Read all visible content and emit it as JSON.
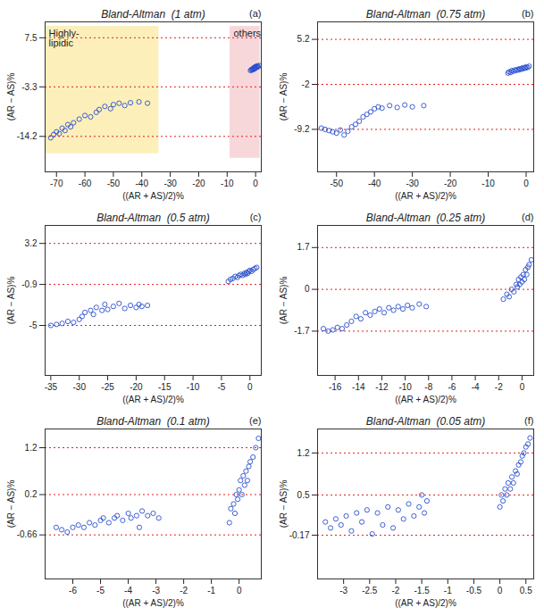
{
  "chart_data": [
    {
      "type": "scatter",
      "title": "Bland-Altman  (1 atm)",
      "panel_label": "(a)",
      "x_label": "((AR + AS)/2)%",
      "y_label": "(AR − AS)%",
      "xlim": [
        -74,
        2
      ],
      "xticks": [
        -70,
        -60,
        -50,
        -40,
        -30,
        -20,
        -10,
        0
      ],
      "ylim": [
        -22,
        11
      ],
      "yticks": [
        7.5,
        -3.3,
        -14.2
      ],
      "grid": true,
      "color": "#2a4fd0",
      "marker": "circle",
      "regions": [
        {
          "label": "Highly-\nlipidic",
          "x": [
            -74,
            -34
          ],
          "y": [
            -18,
            10
          ],
          "color": "#fbeaa3"
        },
        {
          "label": "others",
          "x": [
            -9,
            1.6
          ],
          "y": [
            -19,
            10
          ],
          "color": "#f4c9ce"
        }
      ],
      "x": [
        -72,
        -71,
        -70,
        -69,
        -68,
        -67,
        -66,
        -65,
        -64,
        -62,
        -60,
        -58,
        -56,
        -55,
        -53,
        -51,
        -50,
        -48,
        -46,
        -44,
        -41,
        -38,
        -1.8,
        -1.5,
        -1.3,
        -1.1,
        -0.9,
        -0.8,
        -0.6,
        -0.5,
        -0.4,
        -0.3,
        -0.2,
        -0.1,
        0,
        0.2,
        0.4,
        0.6,
        0.9,
        1.2
      ],
      "values": [
        -14.5,
        -13.8,
        -13.2,
        -13.6,
        -12.4,
        -12.9,
        -11.6,
        -12.1,
        -11.2,
        -10.4,
        -9.6,
        -9.9,
        -8.9,
        -8.3,
        -7.6,
        -8.1,
        -7.2,
        -6.9,
        -7.4,
        -6.8,
        -6.6,
        -6.9,
        0.3,
        0.5,
        0.4,
        0.6,
        0.5,
        0.8,
        0.6,
        0.9,
        0.7,
        1,
        0.8,
        1.1,
        0.9,
        1.2,
        1,
        1.3,
        1.1,
        1.4
      ]
    },
    {
      "type": "scatter",
      "title": "Bland-Altman  (0.75 atm)",
      "panel_label": "(b)",
      "x_label": "((AR + AS)/2)%",
      "y_label": "(AR − AS)%",
      "xlim": [
        -55,
        2
      ],
      "xticks": [
        -50,
        -40,
        -30,
        -20,
        -10,
        0
      ],
      "ylim": [
        -16,
        8
      ],
      "yticks": [
        5.2,
        -2,
        -9.2
      ],
      "grid": true,
      "color": "#2a4fd0",
      "marker": "circle",
      "x": [
        -54,
        -53,
        -52,
        -51,
        -50,
        -49,
        -48,
        -47,
        -46,
        -45,
        -44,
        -43,
        -42,
        -41,
        -40,
        -39,
        -38,
        -36,
        -34,
        -32,
        -30,
        -27,
        -4.8,
        -4.5,
        -4.1,
        -3.8,
        -3.4,
        -3,
        -2.7,
        -2.3,
        -2,
        -1.7,
        -1.4,
        -1.1,
        -0.8,
        -0.5,
        -0.2,
        0.1,
        0.4,
        0.8
      ],
      "values": [
        -9,
        -9.2,
        -9.4,
        -9.6,
        -9.8,
        -9.3,
        -10.1,
        -9.5,
        -8.8,
        -8.4,
        -7.9,
        -7.2,
        -6.8,
        -6.4,
        -5.9,
        -5.6,
        -5.8,
        -5.4,
        -5.7,
        -5.3,
        -5.6,
        -5.4,
        -0.2,
        0,
        -0.1,
        0.2,
        0.1,
        0.3,
        0.2,
        0.4,
        0.3,
        0.5,
        0.4,
        0.6,
        0.5,
        0.7,
        0.6,
        0.8,
        0.7,
        0.9
      ]
    },
    {
      "type": "scatter",
      "title": "Bland-Altman  (0.5 atm)",
      "panel_label": "(c)",
      "x_label": "((AR + AS)/2)%",
      "y_label": "(AR − AS)%",
      "xlim": [
        -36,
        2
      ],
      "xticks": [
        -35,
        -30,
        -25,
        -20,
        -15,
        -10,
        -5,
        0
      ],
      "ylim": [
        -10,
        5
      ],
      "yticks": [
        3.2,
        -0.9,
        -5
      ],
      "grid": true,
      "color": "#2a4fd0",
      "marker": "circle",
      "x": [
        -35,
        -34,
        -33,
        -32,
        -31,
        -30,
        -29.5,
        -29,
        -28,
        -27.5,
        -27,
        -26,
        -25.5,
        -25,
        -24,
        -23,
        -22,
        -21,
        -20,
        -19.5,
        -19,
        -18,
        -3.8,
        -3.4,
        -3,
        -2.6,
        -2.2,
        -1.9,
        -1.6,
        -1.3,
        -1,
        -0.8,
        -0.6,
        -0.4,
        -0.2,
        0,
        0.3,
        0.6,
        0.9,
        1.2
      ],
      "values": [
        -5,
        -4.9,
        -4.8,
        -4.6,
        -4.7,
        -4.4,
        -4.1,
        -3.7,
        -3.5,
        -3.9,
        -3.2,
        -3.5,
        -2.9,
        -3.4,
        -3.1,
        -2.8,
        -3.3,
        -3,
        -3.2,
        -2.9,
        -3.1,
        -3,
        -0.6,
        -0.4,
        -0.3,
        -0.1,
        -0.2,
        0,
        0.1,
        0,
        0.2,
        0.1,
        0.3,
        0.2,
        0.4,
        0.5,
        0.4,
        0.6,
        0.7,
        0.8
      ]
    },
    {
      "type": "scatter",
      "title": "Bland-Altman  (0.25 atm)",
      "panel_label": "(d)",
      "x_label": "((AR + AS)/2)%",
      "y_label": "(AR − AS)%",
      "xlim": [
        -17.5,
        1
      ],
      "xticks": [
        -16,
        -14,
        -12,
        -10,
        -8,
        -6,
        -4,
        -2,
        0
      ],
      "ylim": [
        -3.5,
        2.6
      ],
      "yticks": [
        1.7,
        0,
        -1.7
      ],
      "grid": true,
      "color": "#2a4fd0",
      "marker": "circle",
      "x": [
        -17,
        -16.6,
        -16.2,
        -15.8,
        -15.4,
        -15,
        -14.6,
        -14.2,
        -13.8,
        -13.4,
        -13,
        -12.6,
        -12.2,
        -11.8,
        -11.4,
        -11,
        -10.6,
        -10.2,
        -9.8,
        -9.4,
        -8.8,
        -8.2,
        -1.6,
        -1.3,
        -1.1,
        -0.9,
        -0.7,
        -0.5,
        -0.4,
        -0.3,
        -0.2,
        -0.1,
        0,
        0.1,
        0.2,
        0.3,
        0.4,
        0.5,
        0.6,
        0.8
      ],
      "values": [
        -1.6,
        -1.7,
        -1.65,
        -1.55,
        -1.6,
        -1.45,
        -1.3,
        -1.1,
        -1.2,
        -0.95,
        -1.05,
        -0.9,
        -0.8,
        -0.95,
        -0.75,
        -0.85,
        -0.7,
        -0.8,
        -0.65,
        -0.75,
        -0.6,
        -0.7,
        -0.4,
        -0.2,
        -0.3,
        0,
        -0.1,
        0.2,
        0.1,
        0.4,
        0.2,
        0.5,
        0.3,
        0.6,
        0.4,
        0.8,
        0.6,
        0.9,
        1,
        1.2
      ]
    },
    {
      "type": "scatter",
      "title": "Bland-Altman  (0.1 atm)",
      "panel_label": "(e)",
      "x_label": "((AR + AS)/2)%",
      "y_label": "(AR − AS)%",
      "xlim": [
        -7,
        0.8
      ],
      "xticks": [
        -6,
        -5,
        -4,
        -3,
        -2,
        -1,
        0
      ],
      "ylim": [
        -1.6,
        1.6
      ],
      "yticks": [
        1.2,
        0.2,
        -0.66
      ],
      "grid": true,
      "color": "#2a4fd0",
      "marker": "circle",
      "x": [
        -6.6,
        -6.4,
        -6.2,
        -6,
        -5.8,
        -5.6,
        -5.4,
        -5.2,
        -5,
        -4.9,
        -4.7,
        -4.5,
        -4.4,
        -4.2,
        -4,
        -3.9,
        -3.7,
        -3.6,
        -3.5,
        -3.3,
        -3.1,
        -2.9,
        -0.35,
        -0.3,
        -0.2,
        -0.15,
        -0.1,
        -0.05,
        0,
        0.05,
        0.1,
        0.15,
        0.2,
        0.25,
        0.3,
        0.35,
        0.4,
        0.5,
        0.6,
        0.7
      ],
      "values": [
        -0.5,
        -0.55,
        -0.6,
        -0.5,
        -0.45,
        -0.5,
        -0.4,
        -0.45,
        -0.35,
        -0.3,
        -0.4,
        -0.3,
        -0.25,
        -0.35,
        -0.2,
        -0.3,
        -0.25,
        -0.5,
        -0.15,
        -0.25,
        -0.2,
        -0.3,
        -0.4,
        -0.1,
        0,
        -0.2,
        0.2,
        0.1,
        0.3,
        0.5,
        0.2,
        0.6,
        0.4,
        0.7,
        0.5,
        0.8,
        0.9,
        1,
        1.2,
        1.4
      ]
    },
    {
      "type": "scatter",
      "title": "Bland-Altman  (0.05 atm)",
      "panel_label": "(f)",
      "x_label": "((AR + AS)/2)%",
      "y_label": "(AR − AS)%",
      "xlim": [
        -3.5,
        0.65
      ],
      "xticks": [
        -3,
        -2.5,
        -2,
        -1.5,
        -1,
        -0.5,
        0,
        0.5
      ],
      "ylim": [
        -0.9,
        1.6
      ],
      "yticks": [
        1.2,
        0.5,
        -0.17
      ],
      "grid": true,
      "color": "#2a4fd0",
      "marker": "circle",
      "x": [
        -3.35,
        -3.25,
        -3.15,
        -3.05,
        -2.95,
        -2.85,
        -2.75,
        -2.65,
        -2.55,
        -2.45,
        -2.35,
        -2.25,
        -2.15,
        -2.05,
        -1.95,
        -1.85,
        -1.75,
        -1.65,
        -1.55,
        -1.5,
        -1.45,
        -1.4,
        0,
        0.03,
        0.06,
        0.1,
        0.13,
        0.16,
        0.2,
        0.23,
        0.26,
        0.3,
        0.33,
        0.36,
        0.4,
        0.43,
        0.46,
        0.5,
        0.54,
        0.58
      ],
      "values": [
        0.05,
        -0.05,
        0.1,
        0,
        0.15,
        -0.1,
        0.2,
        0.05,
        0.25,
        -0.15,
        0.2,
        0,
        0.3,
        -0.05,
        0.25,
        0.1,
        0.35,
        0.15,
        0.3,
        0.5,
        0.2,
        0.4,
        0.3,
        0.5,
        0.4,
        0.6,
        0.5,
        0.7,
        0.6,
        0.8,
        0.7,
        0.9,
        0.85,
        1,
        1.05,
        1.15,
        1.2,
        1.3,
        1.35,
        1.45
      ]
    }
  ]
}
